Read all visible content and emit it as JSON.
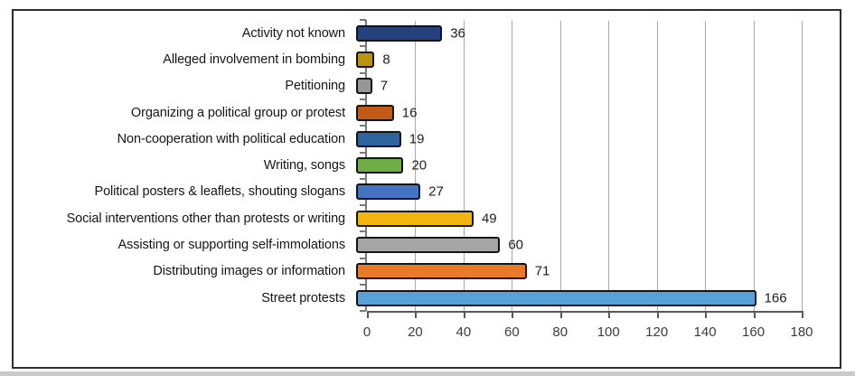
{
  "chart_data": {
    "type": "bar",
    "orientation": "horizontal",
    "title": "",
    "xlabel": "",
    "ylabel": "",
    "categories": [
      "Activity not known",
      "Alleged involvement in bombing",
      "Petitioning",
      "Organizing a political group or protest",
      "Non-cooperation with political education",
      "Writing, songs",
      "Political posters & leaflets, shouting slogans",
      "Social interventions other than protests or writing",
      "Assisting or supporting self-immolations",
      "Distributing images or information",
      "Street protests"
    ],
    "values": [
      36,
      8,
      7,
      16,
      19,
      20,
      27,
      49,
      60,
      71,
      166
    ],
    "bar_colors": [
      "#24417E",
      "#B9950F",
      "#969696",
      "#C05A15",
      "#2E649E",
      "#6FAD47",
      "#4472C4",
      "#F2B50D",
      "#A5A5A5",
      "#E87A28",
      "#58A0D8"
    ],
    "bar_border_color": "#141414",
    "xlim": [
      0,
      180
    ],
    "x_ticks": [
      0,
      20,
      40,
      60,
      80,
      100,
      120,
      140,
      160,
      180
    ],
    "grid": true,
    "gridline_color": "#A9A9A9",
    "axis_color": "#595959",
    "legend": "none"
  }
}
